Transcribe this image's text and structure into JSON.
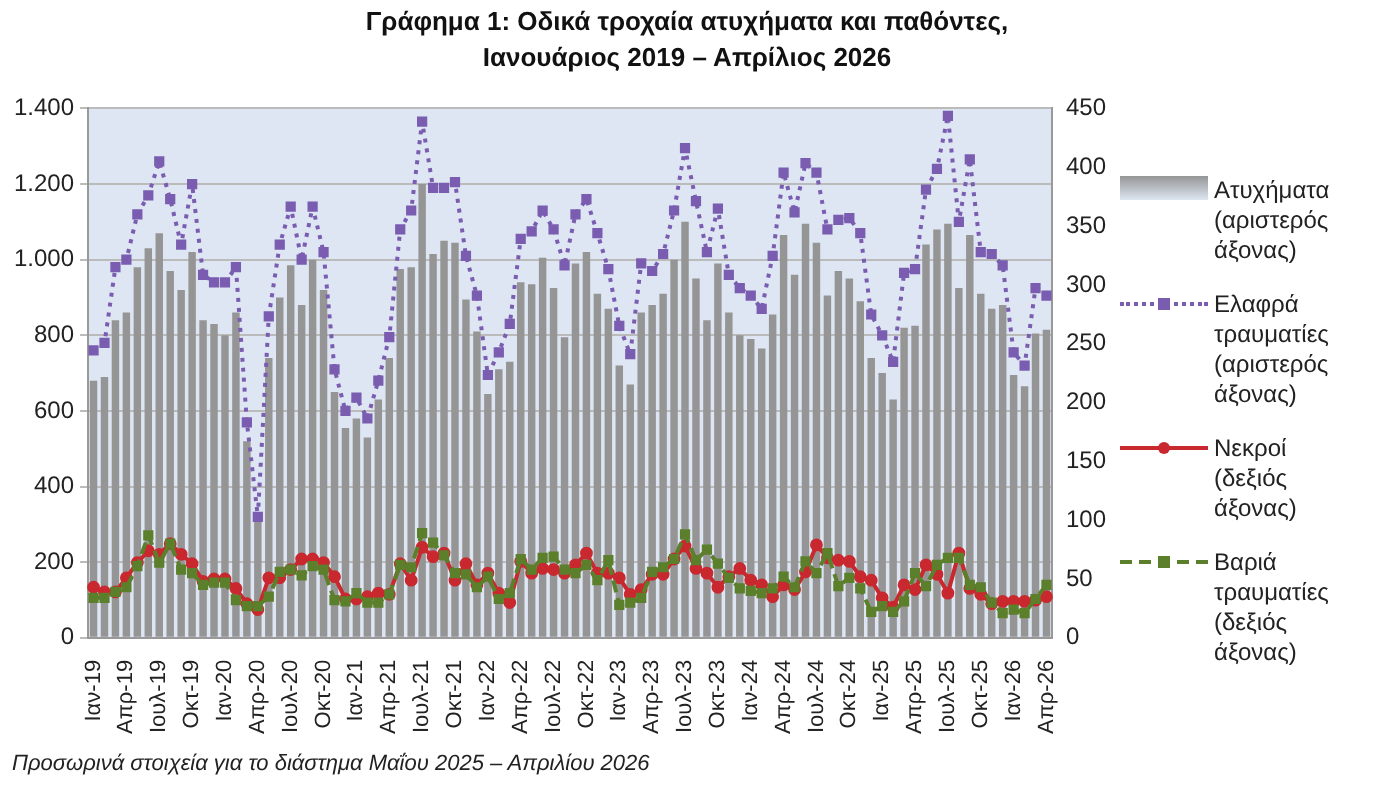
{
  "chart_data": {
    "type": "bar",
    "title": "Γράφημα 1: Οδικά τροχαία ατυχήματα και παθόντες,\nΙανουάριος 2019 – Απρίλιος 2026",
    "annotations": [
      "Προσωρινά στοιχεία για το διάστημα Μαΐου 2025 – Απριλίου 2026"
    ],
    "categories": [
      "Ιαν-19",
      null,
      null,
      "Απρ-19",
      null,
      null,
      "Ιουλ-19",
      null,
      null,
      "Οκτ-19",
      null,
      null,
      "Ιαν-20",
      null,
      null,
      "Απρ-20",
      null,
      null,
      "Ιουλ-20",
      null,
      null,
      "Οκτ-20",
      null,
      null,
      "Ιαν-21",
      null,
      null,
      "Απρ-21",
      null,
      null,
      "Ιουλ-21",
      null,
      null,
      "Οκτ-21",
      null,
      null,
      "Ιαν-22",
      null,
      null,
      "Απρ-22",
      null,
      null,
      "Ιουλ-22",
      null,
      null,
      "Οκτ-22",
      null,
      null,
      "Ιαν-23",
      null,
      null,
      "Απρ-23",
      null,
      null,
      "Ιουλ-23",
      null,
      null,
      "Οκτ-23",
      null,
      null,
      "Ιαν-24",
      null,
      null,
      "Απρ-24",
      null,
      null,
      "Ιουλ-24",
      null,
      null,
      "Οκτ-24",
      null,
      null,
      "Ιαν-25",
      null,
      null,
      "Απρ-25",
      null,
      null,
      "Ιουλ-25",
      null,
      null,
      "Οκτ-25",
      null,
      null,
      "Ιαν-26",
      null,
      null,
      "Απρ-26"
    ],
    "series": [
      {
        "name": "Ατυχήματα (αριστερός άξονας)",
        "axis": "y",
        "color": "#959595",
        "values": [
          680,
          690,
          840,
          860,
          980,
          1030,
          1070,
          970,
          920,
          1020,
          840,
          830,
          800,
          860,
          520,
          310,
          740,
          900,
          985,
          880,
          1000,
          920,
          650,
          555,
          580,
          530,
          630,
          740,
          975,
          980,
          1200,
          1015,
          1050,
          1045,
          895,
          810,
          645,
          710,
          730,
          940,
          935,
          1005,
          925,
          795,
          990,
          1020,
          910,
          870,
          720,
          670,
          860,
          880,
          910,
          1000,
          1100,
          950,
          840,
          990,
          860,
          800,
          790,
          765,
          855,
          1065,
          960,
          1095,
          1045,
          905,
          970,
          950,
          890,
          740,
          700,
          630,
          820,
          825,
          1040,
          1080,
          1095,
          925,
          1065,
          910,
          870,
          880,
          695,
          665,
          805,
          815
        ]
      },
      {
        "name": "Ελαφρά τραυματίες (αριστερός άξονας)",
        "type": "line",
        "axis": "y",
        "color": "#7a5cb0",
        "marker": "square",
        "line_style": "dotted",
        "values": [
          760,
          780,
          980,
          1000,
          1120,
          1170,
          1260,
          1160,
          1040,
          1200,
          960,
          940,
          940,
          980,
          570,
          320,
          850,
          1040,
          1140,
          1000,
          1140,
          1020,
          710,
          600,
          635,
          580,
          680,
          795,
          1080,
          1130,
          1365,
          1190,
          1190,
          1205,
          1010,
          905,
          695,
          755,
          830,
          1055,
          1075,
          1130,
          1080,
          985,
          1120,
          1160,
          1070,
          975,
          825,
          750,
          990,
          970,
          1015,
          1130,
          1295,
          1155,
          1020,
          1135,
          960,
          925,
          905,
          870,
          1010,
          1230,
          1125,
          1255,
          1230,
          1080,
          1105,
          1110,
          1070,
          855,
          800,
          730,
          965,
          975,
          1185,
          1240,
          1380,
          1100,
          1265,
          1020,
          1015,
          985,
          755,
          720,
          925,
          905
        ]
      },
      {
        "name": "Νεκροί (δεξιός άξονας)",
        "type": "line",
        "axis": "y2",
        "color": "#c8282e",
        "marker": "circle",
        "line_style": "solid",
        "values": [
          43,
          39,
          39,
          51,
          64,
          74,
          71,
          80,
          71,
          63,
          48,
          50,
          50,
          42,
          29,
          24,
          51,
          51,
          58,
          67,
          67,
          64,
          52,
          33,
          33,
          35,
          38,
          37,
          63,
          49,
          77,
          69,
          72,
          49,
          63,
          45,
          55,
          38,
          30,
          65,
          55,
          59,
          58,
          55,
          62,
          72,
          55,
          55,
          51,
          37,
          41,
          54,
          54,
          67,
          78,
          59,
          55,
          43,
          52,
          59,
          49,
          45,
          35,
          45,
          41,
          56,
          79,
          68,
          66,
          65,
          52,
          49,
          34,
          26,
          45,
          41,
          62,
          54,
          38,
          72,
          42,
          37,
          29,
          31,
          31,
          31,
          32,
          35
        ]
      },
      {
        "name": "Βαριά τραυματίες (δεξιός άξονας)",
        "type": "line",
        "axis": "y2",
        "color": "#5b7f2a",
        "marker": "square",
        "line_style": "dashed",
        "values": [
          34,
          34,
          39,
          43,
          61,
          87,
          64,
          80,
          58,
          55,
          45,
          47,
          47,
          32,
          27,
          27,
          35,
          56,
          58,
          53,
          61,
          58,
          32,
          31,
          38,
          30,
          30,
          37,
          62,
          60,
          89,
          81,
          70,
          55,
          54,
          43,
          52,
          33,
          38,
          67,
          58,
          68,
          69,
          58,
          55,
          62,
          49,
          66,
          28,
          30,
          34,
          56,
          60,
          67,
          88,
          66,
          75,
          63,
          51,
          42,
          40,
          38,
          42,
          52,
          43,
          65,
          55,
          72,
          44,
          51,
          42,
          22,
          27,
          22,
          31,
          55,
          44,
          62,
          68,
          68,
          45,
          43,
          30,
          21,
          24,
          21,
          33,
          45
        ]
      }
    ],
    "ylim": [
      0,
      1400
    ],
    "yticks": [
      0,
      {
        "value": 200,
        "label": "200"
      },
      {
        "value": 400,
        "label": "400"
      },
      {
        "value": 600,
        "label": "600"
      },
      {
        "value": 800,
        "label": "800"
      },
      {
        "value": 1000,
        "label": "1.000"
      },
      {
        "value": 1200,
        "label": "1.200"
      },
      {
        "value": 1400,
        "label": "1.400"
      }
    ],
    "y2lim": [
      0,
      450
    ],
    "y2ticks": [
      0,
      50,
      100,
      150,
      200,
      250,
      300,
      350,
      400,
      450
    ],
    "grid": "y",
    "legend": "right"
  }
}
